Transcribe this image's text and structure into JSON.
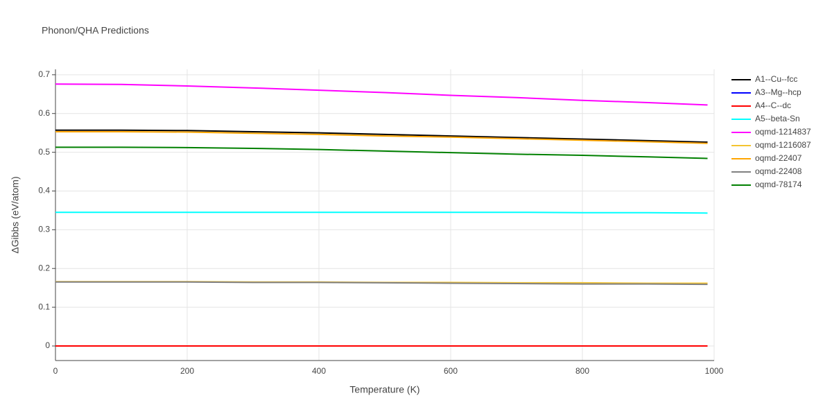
{
  "chart_data": {
    "type": "line",
    "title": "Phonon/QHA Predictions",
    "x_label": "Temperature (K)",
    "y_label": "ΔGibbs (eV/atom)",
    "x": [
      0,
      100,
      200,
      300,
      400,
      500,
      600,
      700,
      800,
      900,
      990
    ],
    "series": [
      {
        "name": "A1--Cu--fcc",
        "color": "#000000",
        "values": [
          0.557,
          0.557,
          0.556,
          0.553,
          0.55,
          0.546,
          0.542,
          0.538,
          0.534,
          0.53,
          0.526
        ]
      },
      {
        "name": "A3--Mg--hcp",
        "color": "#0000ff",
        "values": [
          0,
          0,
          0,
          0,
          0,
          0,
          0,
          0,
          0,
          0,
          0
        ]
      },
      {
        "name": "A4--C--dc",
        "color": "#ff0000",
        "values": [
          0,
          0,
          0,
          0,
          0,
          0,
          0,
          0,
          0,
          0,
          0
        ]
      },
      {
        "name": "A5--beta-Sn",
        "color": "#00ffff",
        "values": [
          0.345,
          0.345,
          0.345,
          0.345,
          0.345,
          0.345,
          0.345,
          0.345,
          0.344,
          0.344,
          0.343
        ]
      },
      {
        "name": "oqmd-1214837",
        "color": "#ff00ff",
        "values": [
          0.676,
          0.675,
          0.671,
          0.666,
          0.66,
          0.654,
          0.647,
          0.641,
          0.634,
          0.628,
          0.622
        ]
      },
      {
        "name": "oqmd-1216087",
        "color": "#f4c430",
        "values": [
          0.166,
          0.166,
          0.166,
          0.165,
          0.165,
          0.164,
          0.164,
          0.163,
          0.163,
          0.162,
          0.162
        ]
      },
      {
        "name": "oqmd-22407",
        "color": "#ffa500",
        "values": [
          0.553,
          0.553,
          0.552,
          0.549,
          0.546,
          0.542,
          0.539,
          0.535,
          0.531,
          0.527,
          0.523
        ]
      },
      {
        "name": "oqmd-22408",
        "color": "#808080",
        "values": [
          0.165,
          0.165,
          0.165,
          0.164,
          0.164,
          0.163,
          0.162,
          0.161,
          0.16,
          0.16,
          0.159
        ]
      },
      {
        "name": "oqmd-78174",
        "color": "#008000",
        "values": [
          0.513,
          0.513,
          0.512,
          0.51,
          0.507,
          0.503,
          0.499,
          0.495,
          0.492,
          0.488,
          0.484
        ]
      }
    ],
    "xlim": [
      0,
      1000
    ],
    "xticks": [
      0,
      200,
      400,
      600,
      800,
      1000
    ],
    "ylim": [
      -0.0376,
      0.714
    ],
    "yticks": [
      0,
      0.1,
      0.2,
      0.3,
      0.4,
      0.5,
      0.6,
      0.7
    ],
    "grid": true
  }
}
